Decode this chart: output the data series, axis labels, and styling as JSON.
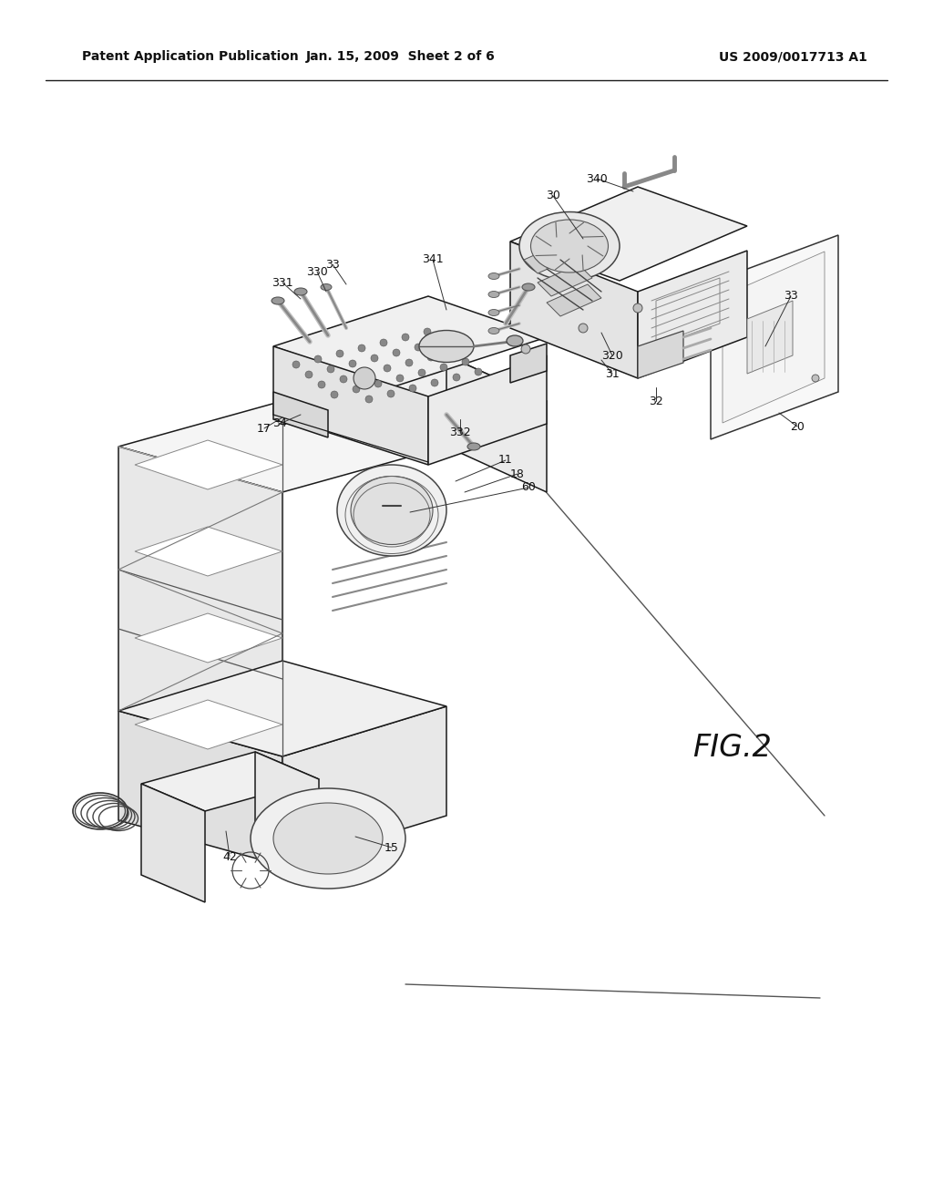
{
  "bg_color": "#ffffff",
  "header_left": "Patent Application Publication",
  "header_mid": "Jan. 15, 2009  Sheet 2 of 6",
  "header_right": "US 2009/0017713 A1",
  "fig_label": "FIG.2",
  "lc": "#1a1a1a",
  "lw": 1.1
}
